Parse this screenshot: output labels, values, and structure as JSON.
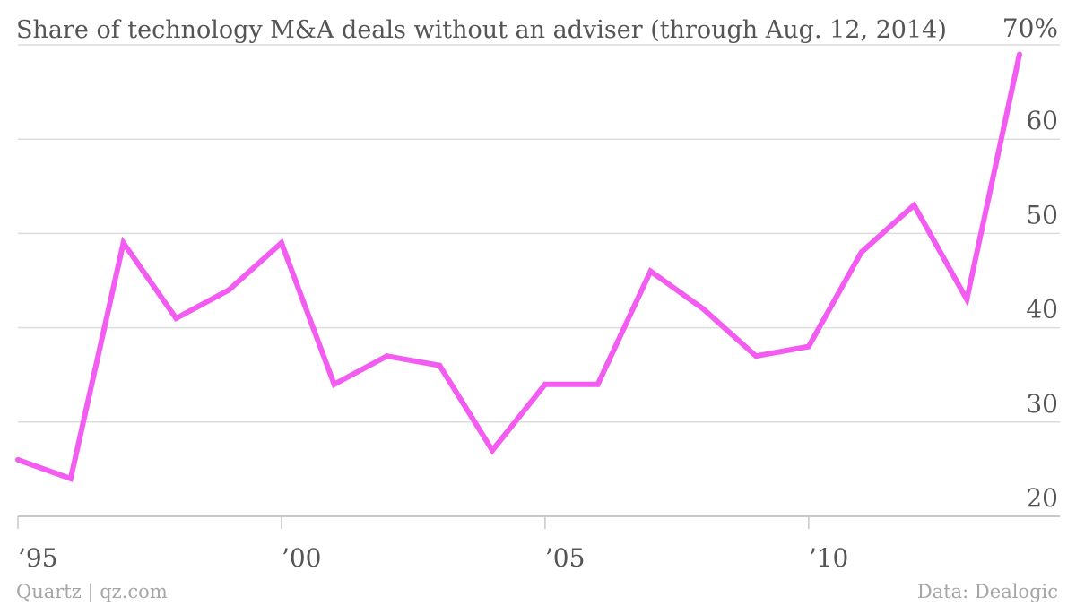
{
  "chart_data": {
    "type": "line",
    "title": "Share of technology M&A deals without an adviser (through Aug. 12, 2014)",
    "x": [
      1995,
      1996,
      1997,
      1998,
      1999,
      2000,
      2001,
      2002,
      2003,
      2004,
      2005,
      2006,
      2007,
      2008,
      2009,
      2010,
      2011,
      2012,
      2013,
      2014
    ],
    "series": [
      {
        "values": [
          26,
          24,
          49,
          41,
          44,
          49,
          34,
          37,
          36,
          27,
          34,
          34,
          46,
          42,
          37,
          38,
          48,
          53,
          43,
          69
        ]
      }
    ],
    "xlim": [
      1995,
      2014
    ],
    "ylim": [
      20,
      70
    ],
    "y_ticks": [
      20,
      30,
      40,
      50,
      60,
      70
    ],
    "y_tick_labels": [
      "20",
      "30",
      "40",
      "50",
      "60",
      "70%"
    ],
    "x_ticks": [
      1995,
      2000,
      2005,
      2010
    ],
    "x_tick_labels": [
      "’95",
      "’00",
      "’05",
      "’10"
    ],
    "grid": true,
    "color": "#f25cf0"
  },
  "footer": {
    "source_left": "Quartz | qz.com",
    "source_right": "Data: Dealogic"
  }
}
